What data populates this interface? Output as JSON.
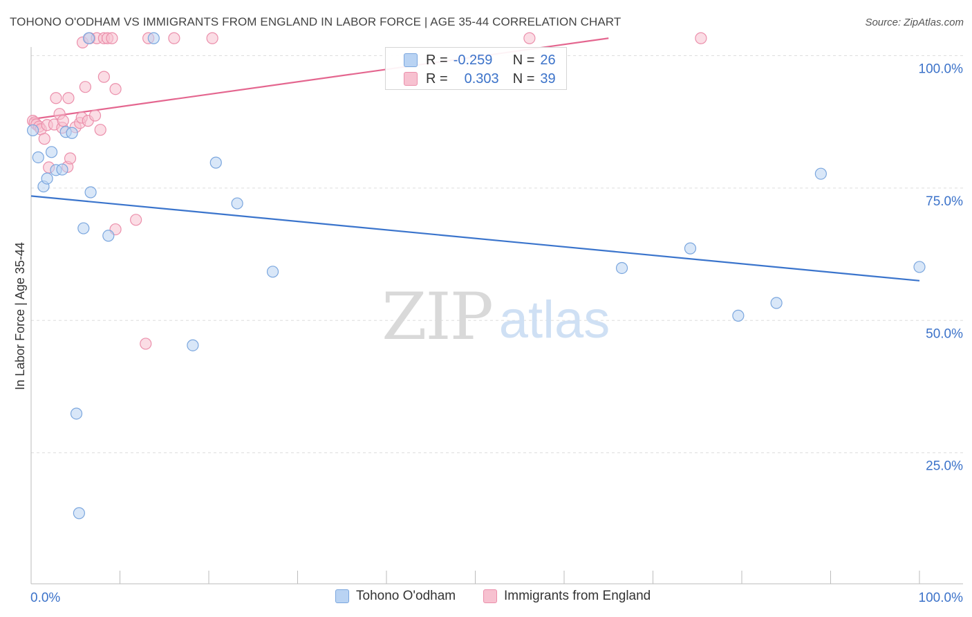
{
  "title": "TOHONO O'ODHAM VS IMMIGRANTS FROM ENGLAND IN LABOR FORCE | AGE 35-44 CORRELATION CHART",
  "source": "Source: ZipAtlas.com",
  "watermark": {
    "zip": "ZIP",
    "atlas": "atlas"
  },
  "colors": {
    "blue_fill": "#b9d3f3",
    "blue_stroke": "#7aa6de",
    "blue_line": "#3a74cc",
    "pink_fill": "#f7c1d0",
    "pink_stroke": "#eb8fab",
    "pink_line": "#e4668f",
    "axis_text": "#3b72c9",
    "grid": "#dddddd"
  },
  "legend_top": {
    "rows": [
      {
        "r_label": "R =",
        "r_value": "-0.259",
        "n_label": "N =",
        "n_value": "26",
        "series": "blue"
      },
      {
        "r_label": "R =",
        "r_value": "0.303",
        "n_label": "N =",
        "n_value": "39",
        "series": "pink"
      }
    ]
  },
  "legend_bottom": [
    {
      "label": "Tohono O'odham",
      "series": "blue"
    },
    {
      "label": "Immigrants from England",
      "series": "pink"
    }
  ],
  "chart_data": {
    "type": "scatter",
    "title": "TOHONO O'ODHAM VS IMMIGRANTS FROM ENGLAND IN LABOR FORCE | AGE 35-44 CORRELATION CHART",
    "xlabel": "",
    "ylabel": "In Labor Force | Age 35-44",
    "xlim": [
      0,
      100
    ],
    "ylim": [
      0,
      100
    ],
    "x_tick_labels": [
      "0.0%",
      "100.0%"
    ],
    "y_ticks": [
      25,
      50,
      75,
      100
    ],
    "y_tick_labels": [
      "25.0%",
      "50.0%",
      "75.0%",
      "100.0%"
    ],
    "grid": true,
    "series": [
      {
        "name": "Tohono O'odham",
        "color": "blue",
        "R": -0.259,
        "N": 26,
        "trend": {
          "x": [
            0,
            100
          ],
          "y": [
            73.5,
            57.5
          ]
        },
        "points": [
          {
            "x": 0.2,
            "y": 85.9
          },
          {
            "x": 0.8,
            "y": 80.8
          },
          {
            "x": 1.4,
            "y": 75.3
          },
          {
            "x": 1.8,
            "y": 76.8
          },
          {
            "x": 2.3,
            "y": 81.8
          },
          {
            "x": 2.8,
            "y": 78.4
          },
          {
            "x": 3.5,
            "y": 78.5
          },
          {
            "x": 3.9,
            "y": 85.6
          },
          {
            "x": 4.6,
            "y": 85.4
          },
          {
            "x": 5.9,
            "y": 67.4
          },
          {
            "x": 6.7,
            "y": 74.2
          },
          {
            "x": 8.7,
            "y": 66.0
          },
          {
            "x": 6.5,
            "y": 103.3
          },
          {
            "x": 13.8,
            "y": 103.3
          },
          {
            "x": 20.8,
            "y": 79.8
          },
          {
            "x": 23.2,
            "y": 72.1
          },
          {
            "x": 27.2,
            "y": 59.2
          },
          {
            "x": 18.2,
            "y": 45.3
          },
          {
            "x": 5.1,
            "y": 32.4
          },
          {
            "x": 5.4,
            "y": 13.6
          },
          {
            "x": 66.5,
            "y": 59.9
          },
          {
            "x": 74.2,
            "y": 63.6
          },
          {
            "x": 79.6,
            "y": 50.9
          },
          {
            "x": 83.9,
            "y": 53.3
          },
          {
            "x": 88.9,
            "y": 77.7
          },
          {
            "x": 100.0,
            "y": 60.1
          }
        ]
      },
      {
        "name": "Immigrants from England",
        "color": "pink",
        "R": 0.303,
        "N": 39,
        "trend": {
          "x": [
            0,
            65
          ],
          "y": [
            88.0,
            103.3
          ]
        },
        "points": [
          {
            "x": 0.2,
            "y": 87.7
          },
          {
            "x": 0.4,
            "y": 87.4
          },
          {
            "x": 0.6,
            "y": 87.0
          },
          {
            "x": 0.9,
            "y": 86.6
          },
          {
            "x": 1.1,
            "y": 86.1
          },
          {
            "x": 1.5,
            "y": 84.3
          },
          {
            "x": 1.8,
            "y": 86.9
          },
          {
            "x": 2.0,
            "y": 78.9
          },
          {
            "x": 2.6,
            "y": 87.0
          },
          {
            "x": 2.8,
            "y": 92.0
          },
          {
            "x": 3.2,
            "y": 89.0
          },
          {
            "x": 3.5,
            "y": 86.4
          },
          {
            "x": 3.6,
            "y": 87.7
          },
          {
            "x": 4.1,
            "y": 79.0
          },
          {
            "x": 4.2,
            "y": 92.0
          },
          {
            "x": 4.4,
            "y": 80.6
          },
          {
            "x": 5.0,
            "y": 86.5
          },
          {
            "x": 5.5,
            "y": 87.3
          },
          {
            "x": 5.7,
            "y": 88.3
          },
          {
            "x": 6.1,
            "y": 94.1
          },
          {
            "x": 6.4,
            "y": 87.7
          },
          {
            "x": 7.2,
            "y": 88.7
          },
          {
            "x": 7.8,
            "y": 86.0
          },
          {
            "x": 8.2,
            "y": 96.0
          },
          {
            "x": 9.5,
            "y": 93.7
          },
          {
            "x": 9.5,
            "y": 67.2
          },
          {
            "x": 11.8,
            "y": 69.0
          },
          {
            "x": 12.9,
            "y": 45.6
          },
          {
            "x": 5.8,
            "y": 102.5
          },
          {
            "x": 6.6,
            "y": 103.3
          },
          {
            "x": 7.4,
            "y": 103.3
          },
          {
            "x": 8.2,
            "y": 103.3
          },
          {
            "x": 8.6,
            "y": 103.3
          },
          {
            "x": 9.1,
            "y": 103.3
          },
          {
            "x": 13.2,
            "y": 103.3
          },
          {
            "x": 16.1,
            "y": 103.3
          },
          {
            "x": 20.4,
            "y": 103.3
          },
          {
            "x": 56.1,
            "y": 103.3
          },
          {
            "x": 75.4,
            "y": 103.3
          }
        ]
      }
    ]
  }
}
